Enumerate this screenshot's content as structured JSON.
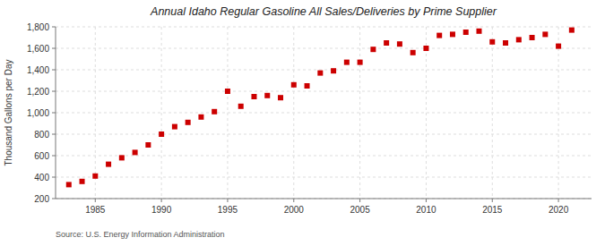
{
  "chart_data": {
    "type": "scatter",
    "title": "Annual Idaho Regular Gasoline All Sales/Deliveries by Prime Supplier",
    "y_label": "Thousand Gallons per Day",
    "annotations": [
      "Source: U.S. Energy Information Administration"
    ],
    "color": "#cc0000",
    "marker": "square",
    "grid": true,
    "xlim": [
      1982,
      2022.5
    ],
    "xticks": [
      1985,
      1990,
      1995,
      2000,
      2005,
      2010,
      2015,
      2020
    ],
    "ylim": [
      200,
      1800
    ],
    "yticks": [
      200,
      400,
      600,
      800,
      {
        "value": 1000,
        "label": "1,000"
      },
      {
        "value": 1200,
        "label": "1,200"
      },
      {
        "value": 1400,
        "label": "1,400"
      },
      {
        "value": 1600,
        "label": "1,600"
      },
      {
        "value": 1800,
        "label": "1,800"
      }
    ],
    "x": [
      1983,
      1984,
      1985,
      1986,
      1987,
      1988,
      1989,
      1990,
      1991,
      1992,
      1993,
      1994,
      1995,
      1996,
      1997,
      1998,
      1999,
      2000,
      2001,
      2002,
      2003,
      2004,
      2005,
      2006,
      2007,
      2008,
      2009,
      2010,
      2011,
      2012,
      2013,
      2014,
      2015,
      2016,
      2017,
      2018,
      2019,
      2020,
      2021
    ],
    "values": [
      330,
      360,
      410,
      520,
      580,
      630,
      700,
      800,
      870,
      910,
      960,
      1010,
      1200,
      1060,
      1150,
      1160,
      1140,
      1260,
      1250,
      1370,
      1390,
      1470,
      1470,
      1590,
      1650,
      1640,
      1560,
      1600,
      1720,
      1730,
      1750,
      1760,
      1660,
      1650,
      1680,
      1700,
      1730,
      1620,
      1770
    ]
  }
}
